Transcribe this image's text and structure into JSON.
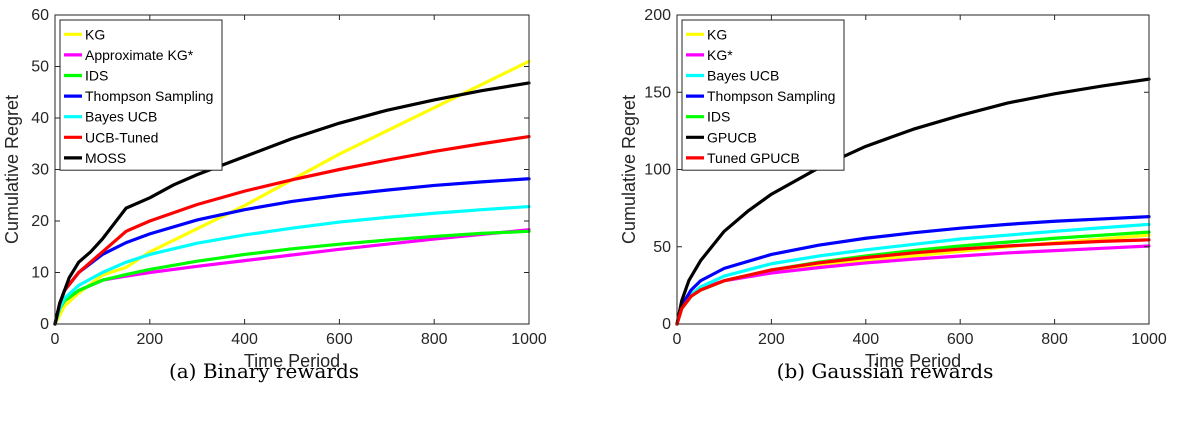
{
  "chart_data": [
    {
      "type": "line",
      "caption": "(a) Binary rewards",
      "xlabel": "Time Period",
      "ylabel": "Cumulative Regret",
      "xlim": [
        0,
        1000
      ],
      "ylim": [
        0,
        60
      ],
      "xticks": [
        "0",
        "200",
        "400",
        "600",
        "800",
        "1000"
      ],
      "yticks": [
        "0",
        "10",
        "20",
        "30",
        "40",
        "50",
        "60"
      ],
      "grid": false,
      "legend": "top-left",
      "series": [
        {
          "name": "KG",
          "color": "#ffff00",
          "x": [
            0,
            20,
            50,
            100,
            150,
            200,
            300,
            400,
            500,
            600,
            700,
            800,
            900,
            1000
          ],
          "y": [
            0,
            3.5,
            6,
            9.5,
            11,
            14,
            18.5,
            23,
            28,
            33,
            37.5,
            42,
            46.5,
            51
          ]
        },
        {
          "name": "Approximate KG*",
          "color": "#ff00ff",
          "x": [
            0,
            10,
            20,
            50,
            100,
            150,
            200,
            300,
            400,
            500,
            600,
            700,
            800,
            900,
            1000
          ],
          "y": [
            0,
            3,
            4.5,
            6.5,
            8.5,
            9.3,
            10,
            11.2,
            12.3,
            13.4,
            14.5,
            15.5,
            16.5,
            17.4,
            18.3
          ]
        },
        {
          "name": "IDS",
          "color": "#00ff00",
          "x": [
            0,
            10,
            20,
            50,
            100,
            150,
            200,
            300,
            400,
            500,
            600,
            700,
            800,
            900,
            1000
          ],
          "y": [
            0,
            3,
            4.5,
            6.5,
            8.5,
            9.6,
            10.6,
            12.2,
            13.5,
            14.6,
            15.5,
            16.3,
            17,
            17.6,
            18
          ]
        },
        {
          "name": "Thompson Sampling",
          "color": "#0000ff",
          "x": [
            0,
            10,
            20,
            50,
            100,
            150,
            200,
            300,
            400,
            500,
            600,
            700,
            800,
            900,
            1000
          ],
          "y": [
            0,
            4,
            6.5,
            10,
            13.5,
            15.8,
            17.5,
            20.2,
            22.2,
            23.8,
            25,
            26,
            26.9,
            27.6,
            28.2
          ]
        },
        {
          "name": "Bayes UCB",
          "color": "#00ffff",
          "x": [
            0,
            10,
            20,
            50,
            100,
            150,
            200,
            300,
            400,
            500,
            600,
            700,
            800,
            900,
            1000
          ],
          "y": [
            0,
            3,
            5,
            7.5,
            10,
            12,
            13.5,
            15.7,
            17.3,
            18.6,
            19.8,
            20.7,
            21.5,
            22.2,
            22.8
          ]
        },
        {
          "name": "UCB-Tuned",
          "color": "#ff0000",
          "x": [
            0,
            10,
            20,
            50,
            100,
            150,
            200,
            300,
            400,
            500,
            600,
            700,
            800,
            900,
            1000
          ],
          "y": [
            0,
            4,
            6.5,
            10,
            14,
            18,
            20,
            23.2,
            25.8,
            28,
            30,
            31.8,
            33.5,
            35,
            36.4
          ]
        },
        {
          "name": "MOSS",
          "color": "#000000",
          "x": [
            0,
            10,
            20,
            30,
            50,
            75,
            100,
            125,
            150,
            200,
            250,
            300,
            400,
            500,
            600,
            700,
            800,
            900,
            1000
          ],
          "y": [
            0,
            4,
            6.5,
            9,
            12,
            14,
            16.5,
            19.5,
            22.5,
            24.5,
            27,
            29,
            32.5,
            36,
            39,
            41.5,
            43.5,
            45.3,
            46.8
          ]
        }
      ]
    },
    {
      "type": "line",
      "caption": "(b) Gaussian rewards",
      "xlabel": "Time Period",
      "ylabel": "Cumulative Regret",
      "xlim": [
        0,
        1000
      ],
      "ylim": [
        0,
        200
      ],
      "xticks": [
        "0",
        "200",
        "400",
        "600",
        "800",
        "1000"
      ],
      "yticks": [
        "0",
        "50",
        "100",
        "150",
        "200"
      ],
      "grid": false,
      "legend": "top-left",
      "series": [
        {
          "name": "KG",
          "color": "#ffff00",
          "x": [
            0,
            10,
            30,
            50,
            100,
            200,
            300,
            400,
            500,
            600,
            700,
            800,
            900,
            1000
          ],
          "y": [
            0,
            10,
            18,
            22,
            28,
            34,
            38,
            41,
            44,
            47,
            50,
            52.5,
            55,
            57.5
          ]
        },
        {
          "name": "KG*",
          "color": "#ff00ff",
          "x": [
            0,
            10,
            30,
            50,
            100,
            200,
            300,
            400,
            500,
            600,
            700,
            800,
            900,
            1000
          ],
          "y": [
            0,
            11,
            19,
            23,
            28,
            33,
            36.5,
            39.5,
            42,
            44,
            46,
            47.5,
            49,
            50.5
          ]
        },
        {
          "name": "Bayes UCB",
          "color": "#00ffff",
          "x": [
            0,
            10,
            30,
            50,
            100,
            200,
            300,
            400,
            500,
            600,
            700,
            800,
            900,
            1000
          ],
          "y": [
            0,
            10,
            19,
            24,
            31,
            39,
            44,
            48,
            51.5,
            55,
            57.5,
            60,
            62.3,
            64.5
          ]
        },
        {
          "name": "Thompson Sampling",
          "color": "#0000ff",
          "x": [
            0,
            10,
            30,
            50,
            100,
            200,
            300,
            400,
            500,
            600,
            700,
            800,
            900,
            1000
          ],
          "y": [
            0,
            12,
            22,
            28,
            36,
            45,
            51,
            55.5,
            59,
            62,
            64.5,
            66.5,
            68,
            69.5
          ]
        },
        {
          "name": "IDS",
          "color": "#00ff00",
          "x": [
            0,
            10,
            30,
            50,
            100,
            200,
            300,
            400,
            500,
            600,
            700,
            800,
            900,
            1000
          ],
          "y": [
            0,
            10,
            18,
            22,
            28,
            35,
            40,
            44,
            47.5,
            50.5,
            53,
            55.5,
            57.5,
            59.5
          ]
        },
        {
          "name": "GPUCB",
          "color": "#000000",
          "x": [
            0,
            10,
            25,
            50,
            100,
            150,
            200,
            300,
            400,
            500,
            600,
            700,
            800,
            900,
            1000
          ],
          "y": [
            0,
            15,
            28,
            41,
            60,
            73,
            84,
            101,
            115,
            126,
            135,
            143,
            149,
            154,
            158.5
          ]
        },
        {
          "name": "Tuned GPUCB",
          "color": "#ff0000",
          "x": [
            0,
            10,
            30,
            50,
            100,
            200,
            300,
            400,
            500,
            600,
            700,
            800,
            900,
            1000
          ],
          "y": [
            0,
            10,
            18,
            22,
            28,
            35,
            39.5,
            43,
            46,
            48.5,
            50.5,
            52,
            53.5,
            54.5
          ]
        }
      ]
    }
  ]
}
